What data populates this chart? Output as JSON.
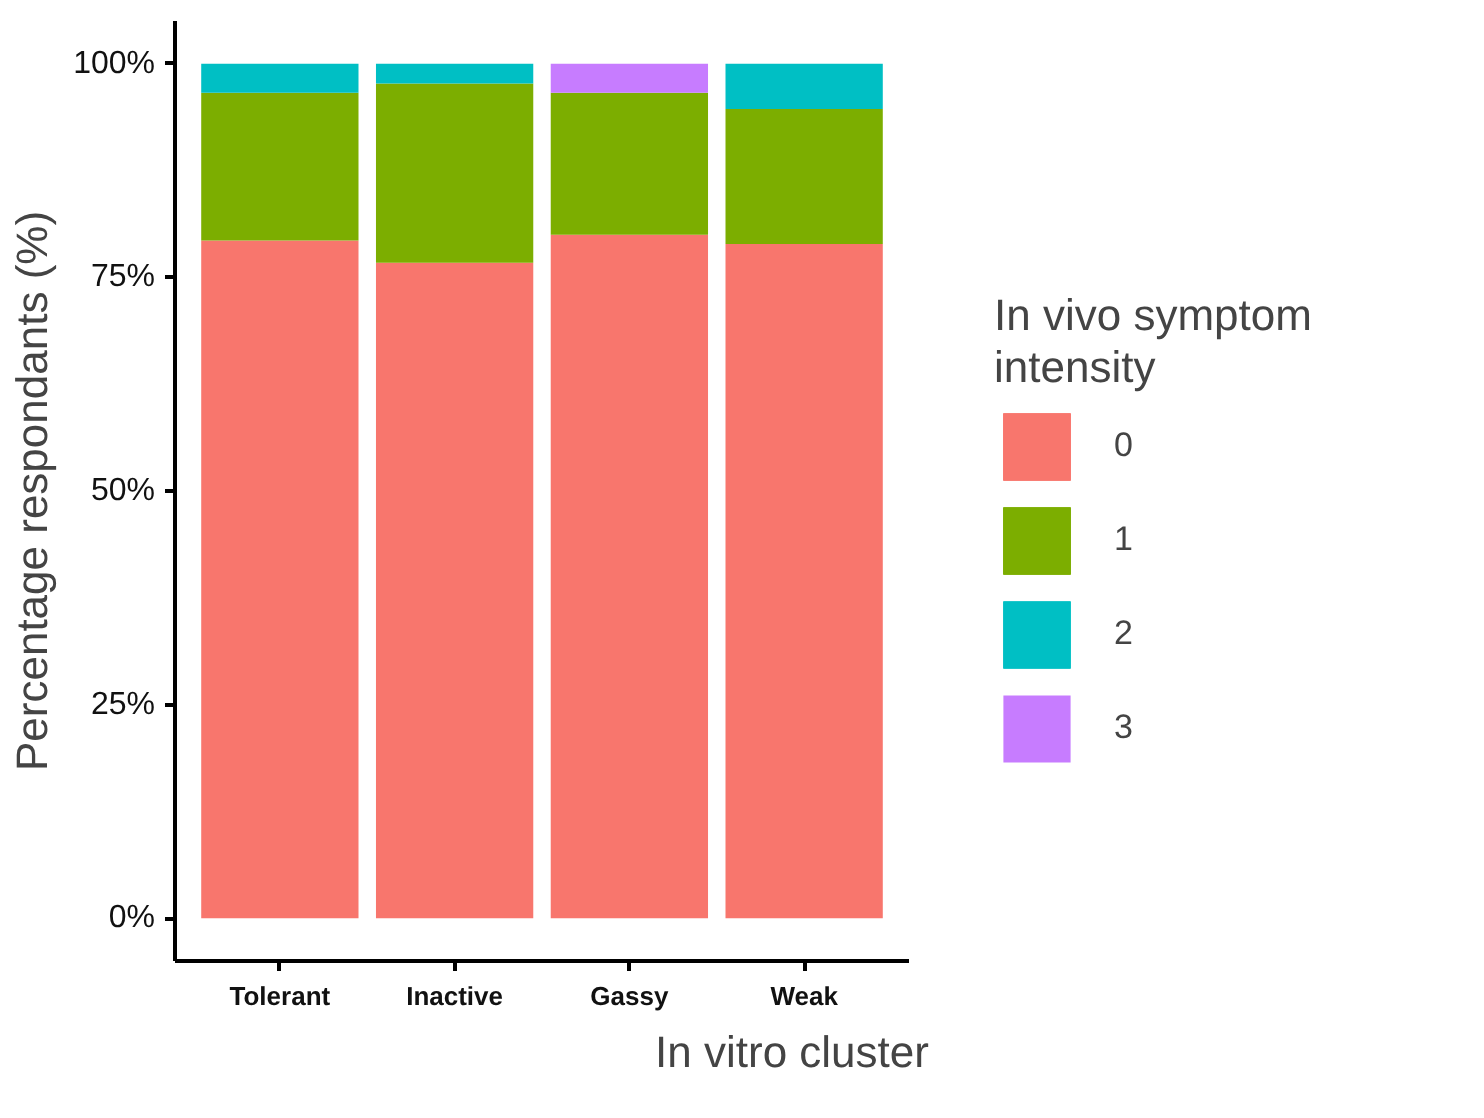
{
  "chart_data": {
    "type": "bar",
    "stacked": true,
    "xlabel": "In vitro cluster",
    "ylabel": "Percentage respondants (%)",
    "legend_title": "In vivo symptom\nintensity",
    "legend": "right",
    "grid": false,
    "categories": [
      "Tolerant",
      "Inactive",
      "Gassy",
      "Weak"
    ],
    "ylim": [
      -5,
      105
    ],
    "yticks": [
      {
        "value": 0,
        "label": "0%"
      },
      {
        "value": 25,
        "label": "25%"
      },
      {
        "value": 50,
        "label": "50%"
      },
      {
        "value": 75,
        "label": "75%"
      },
      {
        "value": 100,
        "label": "100%"
      }
    ],
    "series": [
      {
        "name": "0",
        "color": "#f8766d",
        "values": [
          79.3,
          76.7,
          80.0,
          78.9
        ]
      },
      {
        "name": "1",
        "color": "#7cae00",
        "values": [
          17.3,
          21.0,
          16.6,
          15.8
        ]
      },
      {
        "name": "2",
        "color": "#00bfc4",
        "values": [
          3.4,
          2.3,
          null,
          5.3
        ]
      },
      {
        "name": "3",
        "color": "#c77cff",
        "values": [
          null,
          null,
          3.4,
          null
        ]
      }
    ]
  }
}
